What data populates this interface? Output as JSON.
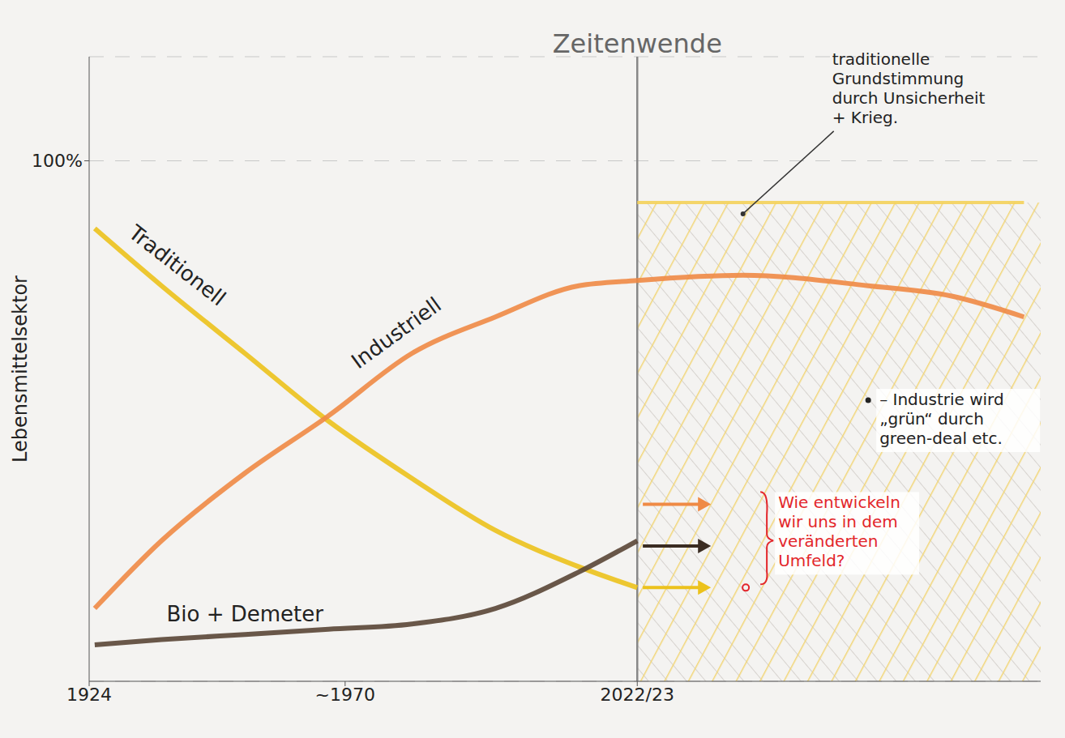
{
  "chart_data": {
    "type": "line",
    "y_label": "Lebensmittelsektor",
    "x": [
      1925,
      1937,
      1952,
      1967,
      1982,
      1997,
      2012,
      2022.5,
      2041.5,
      2064,
      2079,
      2092
    ],
    "series": [
      {
        "name": "Traditionell",
        "color": "#ecc21c",
        "values": [
          87,
          76,
          63,
          50,
          39,
          29,
          22,
          18,
          null,
          null,
          null,
          null
        ]
      },
      {
        "name": "Industriell",
        "color": "#ef8a45",
        "values": [
          14,
          27,
          40,
          51,
          63,
          70,
          76,
          77,
          78,
          76,
          74,
          70
        ]
      },
      {
        "name": "Bio + Demeter",
        "color": "#5a4636",
        "values": [
          7,
          8,
          9,
          10,
          11,
          14,
          21,
          27,
          null,
          null,
          null,
          null
        ]
      },
      {
        "name": "traditionelle Grundstimmung durch Unsicherheit + Krieg.",
        "color": "#f4d25a",
        "values": [
          null,
          null,
          null,
          null,
          null,
          null,
          null,
          92,
          92,
          92,
          92,
          92
        ]
      }
    ],
    "xlim": [
      1924,
      2095
    ],
    "xticks": [
      1924,
      {
        "value": 1970,
        "label": "~1970"
      },
      {
        "value": 2022.5,
        "label": "2022/23"
      }
    ],
    "ylim": [
      0,
      120
    ],
    "yticks": [
      {
        "value": 100,
        "label": "100%"
      }
    ],
    "grid": true,
    "marker_line": {
      "label": "Zeitenwende",
      "x": 2022.5
    },
    "arrows": [
      {
        "x": [
          2023.5,
          2034
        ],
        "y": 34,
        "color": "#ef8a45"
      },
      {
        "x": [
          2023.5,
          2034
        ],
        "y": 26,
        "color": "#3a2c22"
      },
      {
        "x": [
          2023.5,
          2034
        ],
        "y": 18,
        "color": "#ecc21c"
      }
    ],
    "annotations": [
      {
        "text": "– Industrie wird „grün“ durch green-deal etc.",
        "x": 2064,
        "y": 54,
        "color": "#222222"
      },
      {
        "text": "Wie entwickeln wir uns in dem veränderten Umfeld?",
        "x": 2042,
        "y": 18,
        "color": "#e3262b"
      }
    ]
  }
}
